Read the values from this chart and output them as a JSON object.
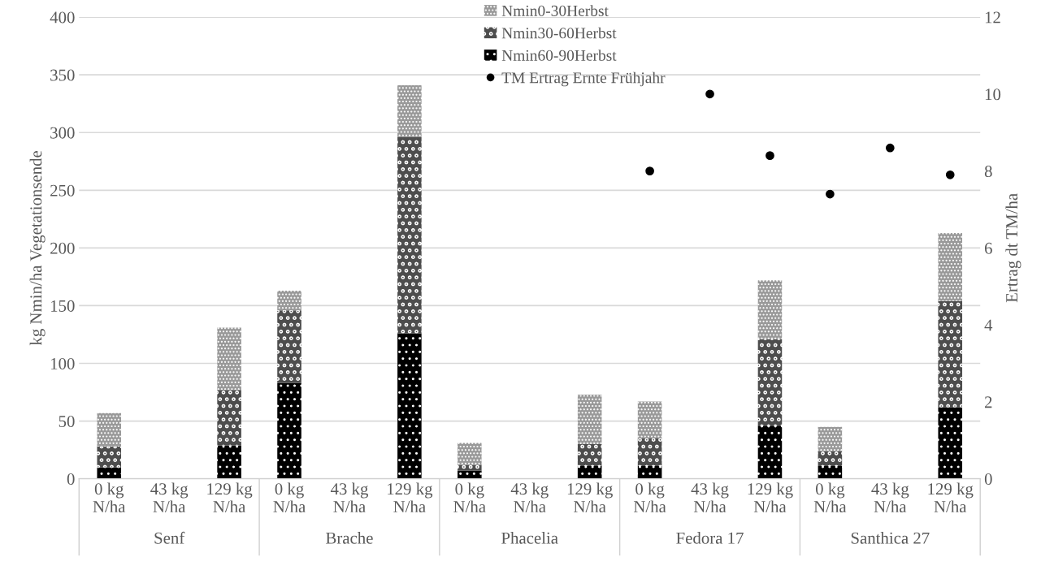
{
  "chart_data": {
    "type": "bar",
    "stacked": true,
    "ylabel": "kg Nmin/ha Vegetationsende",
    "y2label": "Ertrag dt TM/ha",
    "categories": [
      "0 kg N/ha",
      "43 kg N/ha",
      "129 kg N/ha",
      "0 kg N/ha",
      "43 kg N/ha",
      "129 kg N/ha",
      "0 kg N/ha",
      "43 kg N/ha",
      "129 kg N/ha",
      "0 kg N/ha",
      "43 kg N/ha",
      "129 kg N/ha",
      "0 kg N/ha",
      "43 kg N/ha",
      "129 kg N/ha"
    ],
    "annotations": [
      "Senf",
      "Brache",
      "Phacelia",
      "Fedora 17",
      "Santhica 27"
    ],
    "series": [
      {
        "name": "Nmin60-90Herbst",
        "color": "#000000",
        "values": [
          10,
          null,
          29,
          83,
          null,
          126,
          7,
          null,
          11,
          11,
          null,
          46,
          11,
          null,
          62
        ]
      },
      {
        "name": "Nmin30-60Herbst",
        "color": "#4d4d4d",
        "values": [
          18,
          null,
          48,
          63,
          null,
          170,
          5,
          null,
          19,
          24,
          null,
          75,
          13,
          null,
          92
        ]
      },
      {
        "name": "Nmin0-30Herbst",
        "color": "#999999",
        "values": [
          29,
          null,
          54,
          17,
          null,
          45,
          19,
          null,
          43,
          32,
          null,
          51,
          21,
          null,
          59
        ]
      },
      {
        "name": "TM Ertrag Ernte Frühjahr",
        "type": "scatter",
        "axis": "y2",
        "color": "#000000",
        "marker": "circle",
        "values": [
          null,
          null,
          null,
          null,
          null,
          null,
          null,
          null,
          null,
          8.0,
          10.0,
          8.4,
          7.4,
          8.6,
          7.9
        ]
      }
    ],
    "ylim": [
      0,
      400
    ],
    "yticks": [
      0,
      50,
      100,
      150,
      200,
      250,
      300,
      350,
      400
    ],
    "y2lim": [
      0,
      12
    ],
    "y2ticks": [
      0,
      2,
      4,
      6,
      8,
      10,
      12
    ],
    "grid": "y",
    "legend": "top"
  }
}
